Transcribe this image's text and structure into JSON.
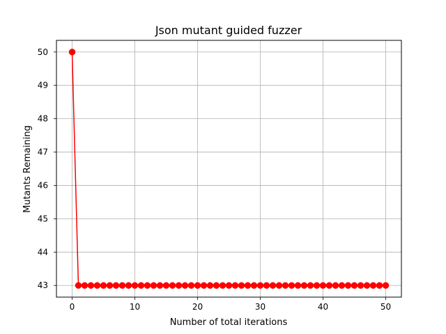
{
  "chart_data": {
    "type": "line",
    "title": "Json mutant guided fuzzer",
    "xlabel": "Number of total iterations",
    "ylabel": "Mutants Remaining",
    "xlim": [
      -2.5,
      52.5
    ],
    "ylim": [
      42.65,
      50.35
    ],
    "xticks": [
      0,
      10,
      20,
      30,
      40,
      50
    ],
    "yticks": [
      43,
      44,
      45,
      46,
      47,
      48,
      49,
      50
    ],
    "grid": true,
    "legend": "none",
    "series": [
      {
        "name": "Mutants Remaining",
        "color": "#ff0000",
        "marker": "circle",
        "x": [
          0,
          1,
          2,
          3,
          4,
          5,
          6,
          7,
          8,
          9,
          10,
          11,
          12,
          13,
          14,
          15,
          16,
          17,
          18,
          19,
          20,
          21,
          22,
          23,
          24,
          25,
          26,
          27,
          28,
          29,
          30,
          31,
          32,
          33,
          34,
          35,
          36,
          37,
          38,
          39,
          40,
          41,
          42,
          43,
          44,
          45,
          46,
          47,
          48,
          49,
          50
        ],
        "y": [
          50,
          43,
          43,
          43,
          43,
          43,
          43,
          43,
          43,
          43,
          43,
          43,
          43,
          43,
          43,
          43,
          43,
          43,
          43,
          43,
          43,
          43,
          43,
          43,
          43,
          43,
          43,
          43,
          43,
          43,
          43,
          43,
          43,
          43,
          43,
          43,
          43,
          43,
          43,
          43,
          43,
          43,
          43,
          43,
          43,
          43,
          43,
          43,
          43,
          43,
          43
        ]
      }
    ]
  }
}
